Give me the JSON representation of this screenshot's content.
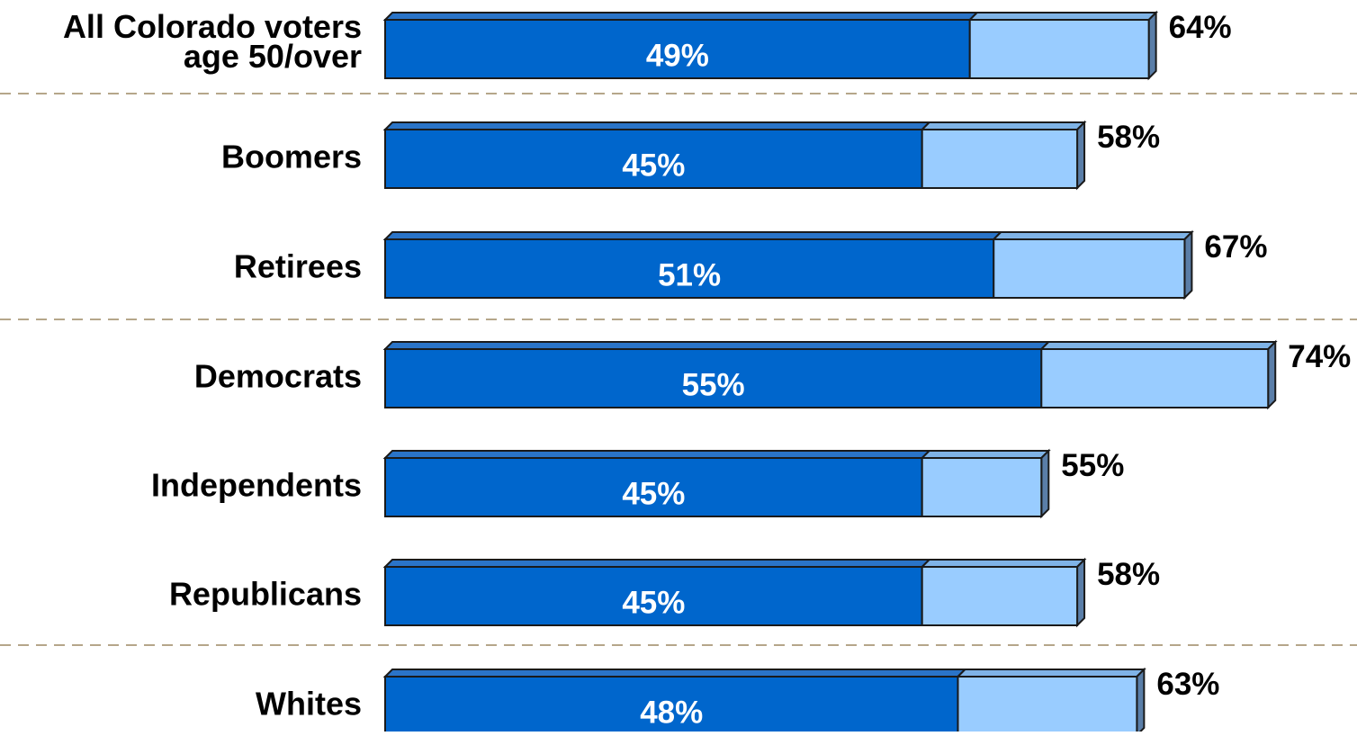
{
  "chart_data": {
    "type": "bar",
    "orientation": "horizontal",
    "stacked": true,
    "title": "",
    "xlabel": "",
    "ylabel": "",
    "xlim": [
      0,
      85
    ],
    "grid": false,
    "legend": "none",
    "categories": [
      "All Colorado voters age 50/over",
      "Boomers",
      "Retirees",
      "Democrats",
      "Independents",
      "Republicans",
      "Whites"
    ],
    "category_lines": [
      [
        "All Colorado voters",
        "age 50/over"
      ],
      [
        "Boomers"
      ],
      [
        "Retirees"
      ],
      [
        "Democrats"
      ],
      [
        "Independents"
      ],
      [
        "Republicans"
      ],
      [
        "Whites"
      ]
    ],
    "series": [
      {
        "values": [
          49,
          45,
          51,
          55,
          45,
          45,
          48
        ],
        "labels": [
          "49%",
          "45%",
          "51%",
          "55%",
          "45%",
          "45%",
          "48%"
        ],
        "color": "#0066cc"
      },
      {
        "values": [
          15,
          13,
          16,
          19,
          10,
          13,
          15
        ],
        "color": "#99ccff"
      }
    ],
    "totals": [
      64,
      58,
      67,
      74,
      55,
      58,
      63
    ],
    "total_labels": [
      "64%",
      "58%",
      "67%",
      "74%",
      "55%",
      "58%",
      "63%"
    ],
    "divider_after_index": [
      0,
      2,
      5
    ],
    "colors": {
      "dark": "#0066cc",
      "light": "#99ccff",
      "divider": "#b5a68a"
    }
  }
}
